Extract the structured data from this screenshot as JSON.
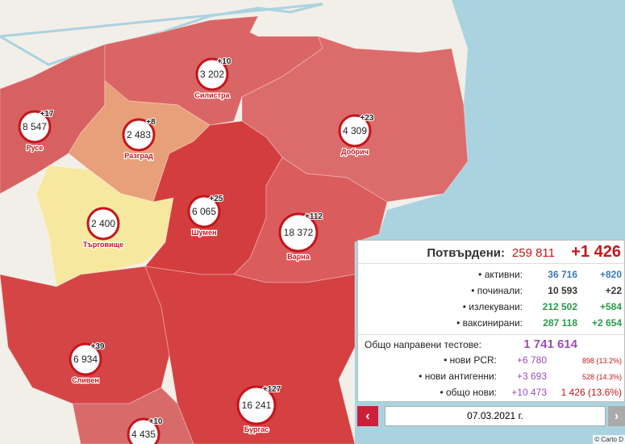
{
  "regions": [
    {
      "name": "Силистра",
      "value": "3 202",
      "delta": "+10"
    },
    {
      "name": "Русе",
      "value": "8 547",
      "delta": "+17"
    },
    {
      "name": "Разград",
      "value": "2 483",
      "delta": "+8"
    },
    {
      "name": "Добрич",
      "value": "4 309",
      "delta": "+23"
    },
    {
      "name": "Търговище",
      "value": "2 400"
    },
    {
      "name": "Шумен",
      "value": "6 065",
      "delta": "+25"
    },
    {
      "name": "Варна",
      "value": "18 372",
      "delta": "+112"
    },
    {
      "name": "Сливен",
      "value": "6 934",
      "delta": "+39"
    },
    {
      "name": "Бургас",
      "value": "16 241",
      "delta": "+127"
    },
    {
      "value": "4 435",
      "delta": "+10"
    }
  ],
  "panel": {
    "confirmed": {
      "label": "Потвърдени:",
      "value": "259 811",
      "delta": "+1 426"
    },
    "rows": [
      {
        "label": "• активни:",
        "value": "36 716",
        "delta": "+820"
      },
      {
        "label": "• починали:",
        "value": "10 593",
        "delta": "+22"
      },
      {
        "label": "• излекувани:",
        "value": "212 502",
        "delta": "+584"
      },
      {
        "label": "• ваксинирани:",
        "value": "287 118",
        "delta": "+2 654"
      }
    ],
    "tests": {
      "label": "Общо направени тестове:",
      "value": "1 741 614"
    },
    "test_rows": [
      {
        "label": "• нови PCR:",
        "value": "+6 780",
        "positive": "898 (13.2%)"
      },
      {
        "label": "• нови антигенни:",
        "value": "+3 693",
        "positive": "528 (14.3%)"
      },
      {
        "label": "• общо нови:",
        "value": "+10 473",
        "positive": "1 426 (13.6%)"
      }
    ]
  },
  "date": "07.03.2021 г.",
  "attribution": "© Carto D"
}
